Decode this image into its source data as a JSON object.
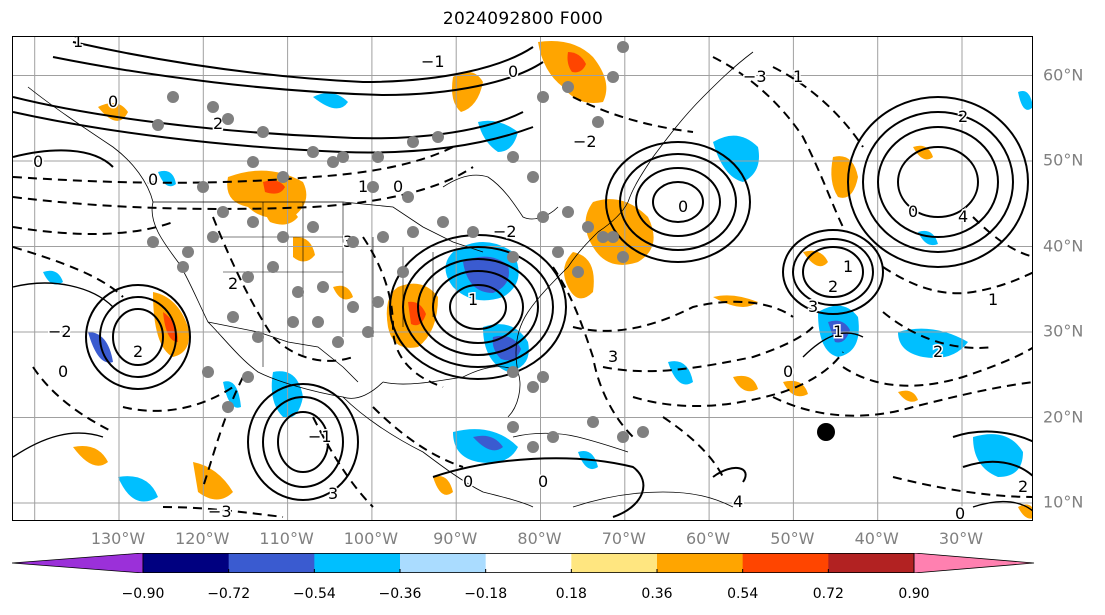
{
  "title": "2024092800 F000",
  "lon_labels": [
    {
      "deg": -130,
      "text": "130°W"
    },
    {
      "deg": -120,
      "text": "120°W"
    },
    {
      "deg": -110,
      "text": "110°W"
    },
    {
      "deg": -100,
      "text": "100°W"
    },
    {
      "deg": -90,
      "text": "90°W"
    },
    {
      "deg": -80,
      "text": "80°W"
    },
    {
      "deg": -70,
      "text": "70°W"
    },
    {
      "deg": -60,
      "text": "60°W"
    },
    {
      "deg": -50,
      "text": "50°W"
    },
    {
      "deg": -40,
      "text": "40°W"
    },
    {
      "deg": -30,
      "text": "30°W"
    }
  ],
  "lat_labels": [
    {
      "deg": 60,
      "text": "60°N"
    },
    {
      "deg": 50,
      "text": "50°N"
    },
    {
      "deg": 40,
      "text": "40°N"
    },
    {
      "deg": 30,
      "text": "30°N"
    },
    {
      "deg": 20,
      "text": "20°N"
    },
    {
      "deg": 10,
      "text": "10°N"
    }
  ],
  "colorbar": {
    "colors": [
      "#9b30d9",
      "#000080",
      "#3a5bd0",
      "#00bfff",
      "#aadcff",
      "#ffffff",
      "#ffe680",
      "#ffa500",
      "#ff4500",
      "#b22222",
      "#ff80b0"
    ],
    "ticks": [
      "−0.90",
      "−0.72",
      "−0.54",
      "−0.36",
      "−0.18",
      "0.18",
      "0.36",
      "0.54",
      "0.72",
      "0.90"
    ]
  },
  "contour_labels": [
    "1",
    "0",
    "2",
    "3",
    "4",
    "1",
    "0",
    "2",
    "3",
    "2",
    "0",
    "1",
    "2",
    "3",
    "0",
    "−1",
    "−2",
    "−3",
    "1",
    "2",
    "0",
    "0",
    "1",
    "2",
    "0",
    "−2",
    "0",
    "3",
    "4",
    "2",
    "1",
    "0",
    "−3",
    "0",
    "0",
    "−2",
    "−1",
    "0",
    "0",
    "1"
  ],
  "markers": {
    "gray_dot_color": "#808080",
    "black_dot_color": "#000000"
  }
}
